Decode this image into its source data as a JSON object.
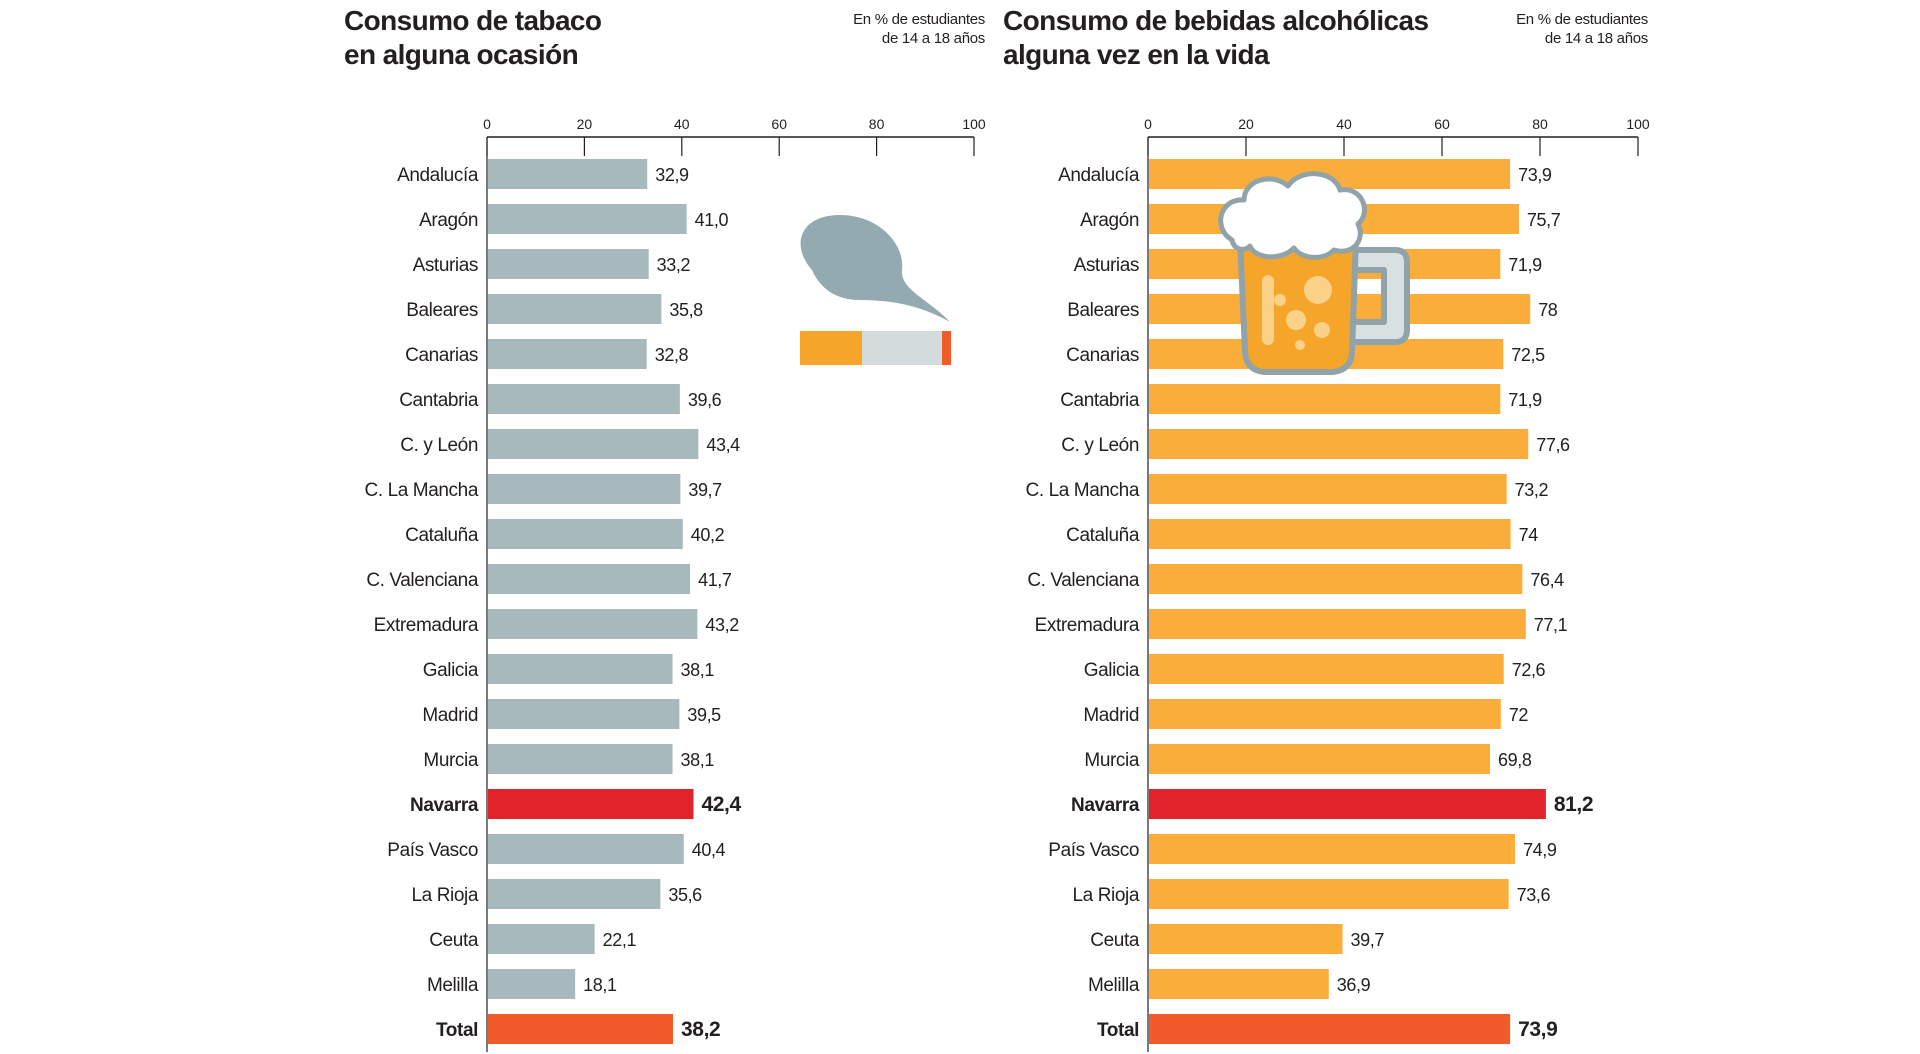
{
  "chart_data": [
    {
      "type": "bar",
      "orientation": "horizontal",
      "title": "Consumo de tabaco\nen alguna ocasión",
      "unit_note": "En % de estudiantes\nde 14 a 18 años",
      "xlim": [
        0,
        100
      ],
      "ticks": [
        "0",
        "20",
        "40",
        "60",
        "80",
        "100"
      ],
      "categories": [
        "Andalucía",
        "Aragón",
        "Asturias",
        "Baleares",
        "Canarias",
        "Cantabria",
        "C. y León",
        "C. La Mancha",
        "Cataluña",
        "C. Valenciana",
        "Extremadura",
        "Galicia",
        "Madrid",
        "Murcia",
        "Navarra",
        "País Vasco",
        "La Rioja",
        "Ceuta",
        "Melilla",
        "Total"
      ],
      "values": [
        32.9,
        41.0,
        33.2,
        35.8,
        32.8,
        39.6,
        43.4,
        39.7,
        40.2,
        41.7,
        43.2,
        38.1,
        39.5,
        38.1,
        42.4,
        40.4,
        35.6,
        22.1,
        18.1,
        38.2
      ],
      "value_labels": [
        "32,9",
        "41,0",
        "33,2",
        "35,8",
        "32,8",
        "39,6",
        "43,4",
        "39,7",
        "40,2",
        "41,7",
        "43,2",
        "38,1",
        "39,5",
        "38,1",
        "42,4",
        "40,4",
        "35,6",
        "22,1",
        "18,1",
        "38,2"
      ],
      "bar_color": "#a7b9bc",
      "highlight": {
        "Navarra": "#e2232a",
        "Total": "#f15a29"
      },
      "icon": "cigarette-smoke-icon"
    },
    {
      "type": "bar",
      "orientation": "horizontal",
      "title": "Consumo de bebidas alcohólicas\nalguna vez en la vida",
      "unit_note": "En % de estudiantes\nde 14 a 18 años",
      "xlim": [
        0,
        100
      ],
      "ticks": [
        "0",
        "20",
        "40",
        "60",
        "80",
        "100"
      ],
      "categories": [
        "Andalucía",
        "Aragón",
        "Asturias",
        "Baleares",
        "Canarias",
        "Cantabria",
        "C. y León",
        "C. La Mancha",
        "Cataluña",
        "C. Valenciana",
        "Extremadura",
        "Galicia",
        "Madrid",
        "Murcia",
        "Navarra",
        "País Vasco",
        "La Rioja",
        "Ceuta",
        "Melilla",
        "Total"
      ],
      "values": [
        73.9,
        75.7,
        71.9,
        78,
        72.5,
        71.9,
        77.6,
        73.2,
        74,
        76.4,
        77.1,
        72.6,
        72,
        69.8,
        81.2,
        74.9,
        73.6,
        39.7,
        36.9,
        73.9
      ],
      "value_labels": [
        "73,9",
        "75,7",
        "71,9",
        "78",
        "72,5",
        "71,9",
        "77,6",
        "73,2",
        "74",
        "76,4",
        "77,1",
        "72,6",
        "72",
        "69,8",
        "81,2",
        "74,9",
        "73,6",
        "39,7",
        "36,9",
        "73,9"
      ],
      "bar_color": "#fbad3b",
      "highlight": {
        "Navarra": "#e2232a",
        "Total": "#f15a29"
      },
      "icon": "beer-mug-icon"
    }
  ]
}
